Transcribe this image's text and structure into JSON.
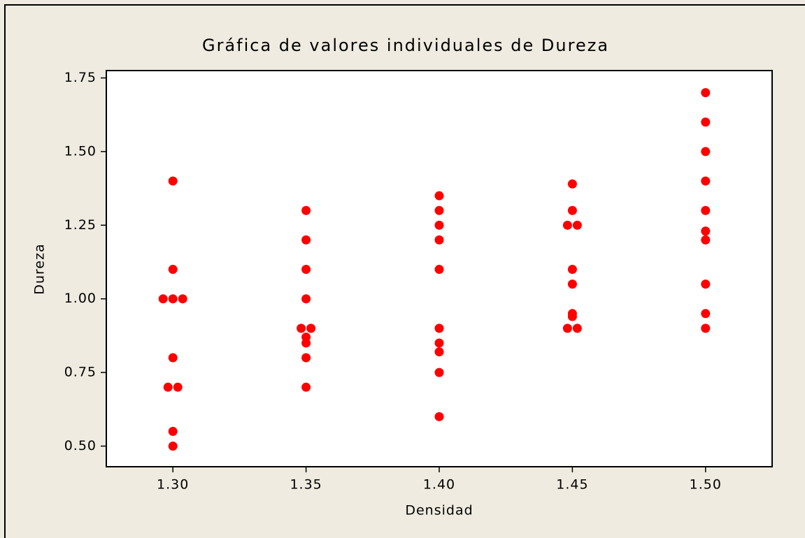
{
  "chart_data": {
    "type": "scatter",
    "title": "Gráfica de valores individuales de Dureza",
    "xlabel": "Densidad",
    "ylabel": "Dureza",
    "x": [
      1.3,
      1.3,
      1.3,
      1.3,
      1.3,
      1.3,
      1.3,
      1.3,
      1.3,
      1.3,
      1.35,
      1.35,
      1.35,
      1.35,
      1.35,
      1.35,
      1.35,
      1.35,
      1.35,
      1.35,
      1.4,
      1.4,
      1.4,
      1.4,
      1.4,
      1.4,
      1.4,
      1.4,
      1.4,
      1.4,
      1.45,
      1.45,
      1.45,
      1.45,
      1.45,
      1.45,
      1.45,
      1.45,
      1.45,
      1.45,
      1.5,
      1.5,
      1.5,
      1.5,
      1.5,
      1.5,
      1.5,
      1.5,
      1.5,
      1.5
    ],
    "series": [
      {
        "name": "Dureza",
        "color": "#ff0000",
        "values": [
          1.4,
          1.1,
          1.0,
          1.0,
          1.0,
          0.8,
          0.7,
          0.7,
          0.55,
          0.5,
          1.3,
          1.2,
          1.1,
          1.0,
          0.9,
          0.9,
          0.87,
          0.85,
          0.8,
          0.7,
          1.35,
          1.3,
          1.25,
          1.2,
          1.1,
          0.9,
          0.85,
          0.82,
          0.75,
          0.6,
          1.39,
          1.3,
          1.25,
          1.25,
          1.1,
          1.05,
          0.95,
          0.94,
          0.9,
          0.9,
          1.7,
          1.6,
          1.5,
          1.4,
          1.3,
          1.23,
          1.2,
          1.05,
          0.95,
          0.9
        ]
      }
    ],
    "xlim": [
      1.275,
      1.525
    ],
    "xticks": [
      {
        "value": 1.3,
        "label": "1.30"
      },
      1.35,
      {
        "value": 1.4,
        "label": "1.40"
      },
      1.45,
      {
        "value": 1.5,
        "label": "1.50"
      }
    ],
    "ylim": [
      0.43,
      1.775
    ],
    "yticks": [
      {
        "value": 0.5,
        "label": "0.50"
      },
      0.75,
      {
        "value": 1.0,
        "label": "1.00"
      },
      1.25,
      {
        "value": 1.5,
        "label": "1.50"
      },
      1.75
    ],
    "grid": false
  }
}
